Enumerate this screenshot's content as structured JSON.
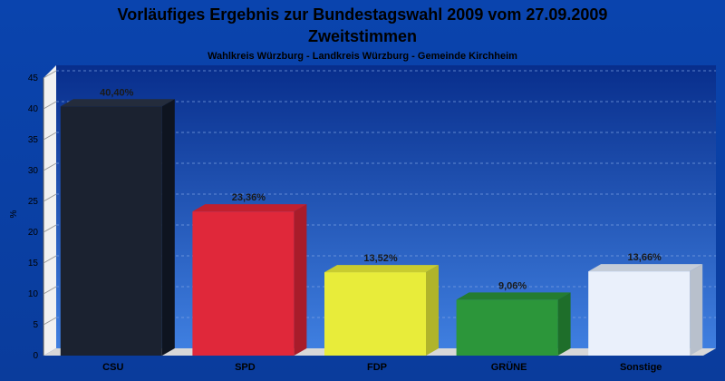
{
  "chart_data": {
    "type": "bar",
    "title": "Vorläufiges Ergebnis zur Bundestagswahl 2009 vom 27.09.2009",
    "title_line2": "Zweitstimmen",
    "subtitle": "Wahlkreis Würzburg - Landkreis Würzburg - Gemeinde Kirchheim",
    "ylabel": "%",
    "xlabel": "",
    "ylim": [
      0,
      45
    ],
    "yticks": [
      0,
      5,
      10,
      15,
      20,
      25,
      30,
      35,
      40,
      45
    ],
    "grid": true,
    "categories": [
      "CSU",
      "SPD",
      "FDP",
      "GRÜNE",
      "Sonstige"
    ],
    "values": [
      40.4,
      23.36,
      13.52,
      9.06,
      13.66
    ],
    "value_labels": [
      "40,40%",
      "23,36%",
      "13,52%",
      "9,06%",
      "13,66%"
    ],
    "colors": [
      "#1b2230",
      "#e0283a",
      "#e8ec3a",
      "#2c963a",
      "#eaf0fb"
    ],
    "side_colors": [
      "#0e1420",
      "#a81c2a",
      "#b0b42a",
      "#1e6e2a",
      "#b8c0cc"
    ],
    "top_colors": [
      "#242c3c",
      "#c0202f",
      "#c8cc30",
      "#247c30",
      "#c4ccd8"
    ]
  }
}
